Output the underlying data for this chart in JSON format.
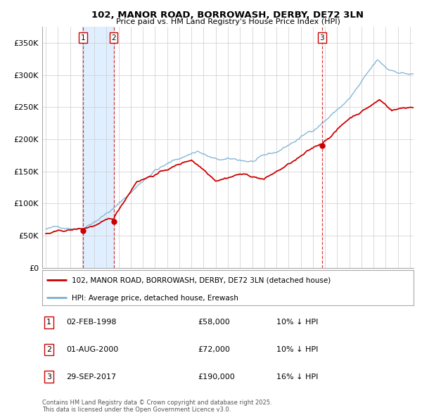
{
  "title1": "102, MANOR ROAD, BORROWASH, DERBY, DE72 3LN",
  "title2": "Price paid vs. HM Land Registry's House Price Index (HPI)",
  "legend_label_red": "102, MANOR ROAD, BORROWASH, DERBY, DE72 3LN (detached house)",
  "legend_label_blue": "HPI: Average price, detached house, Erewash",
  "transactions": [
    {
      "num": 1,
      "date": "02-FEB-1998",
      "price": 58000,
      "pct": "10%",
      "dir": "↓",
      "x": 1998.085
    },
    {
      "num": 2,
      "date": "01-AUG-2000",
      "price": 72000,
      "pct": "10%",
      "dir": "↓",
      "x": 2000.583
    },
    {
      "num": 3,
      "date": "29-SEP-2017",
      "price": 190000,
      "pct": "16%",
      "dir": "↓",
      "x": 2017.747
    }
  ],
  "footnote": "Contains HM Land Registry data © Crown copyright and database right 2025.\nThis data is licensed under the Open Government Licence v3.0.",
  "color_red": "#cc0000",
  "color_blue": "#7ab0d4",
  "color_vline": "#cc0000",
  "color_shade": "#ddeeff",
  "color_grid": "#cccccc",
  "color_bg": "#ffffff",
  "ylim": [
    0,
    375000
  ],
  "xlim_start": 1994.7,
  "xlim_end": 2025.3,
  "yticks": [
    0,
    50000,
    100000,
    150000,
    200000,
    250000,
    300000,
    350000
  ],
  "ytick_labels": [
    "£0",
    "£50K",
    "£100K",
    "£150K",
    "£200K",
    "£250K",
    "£300K",
    "£350K"
  ]
}
